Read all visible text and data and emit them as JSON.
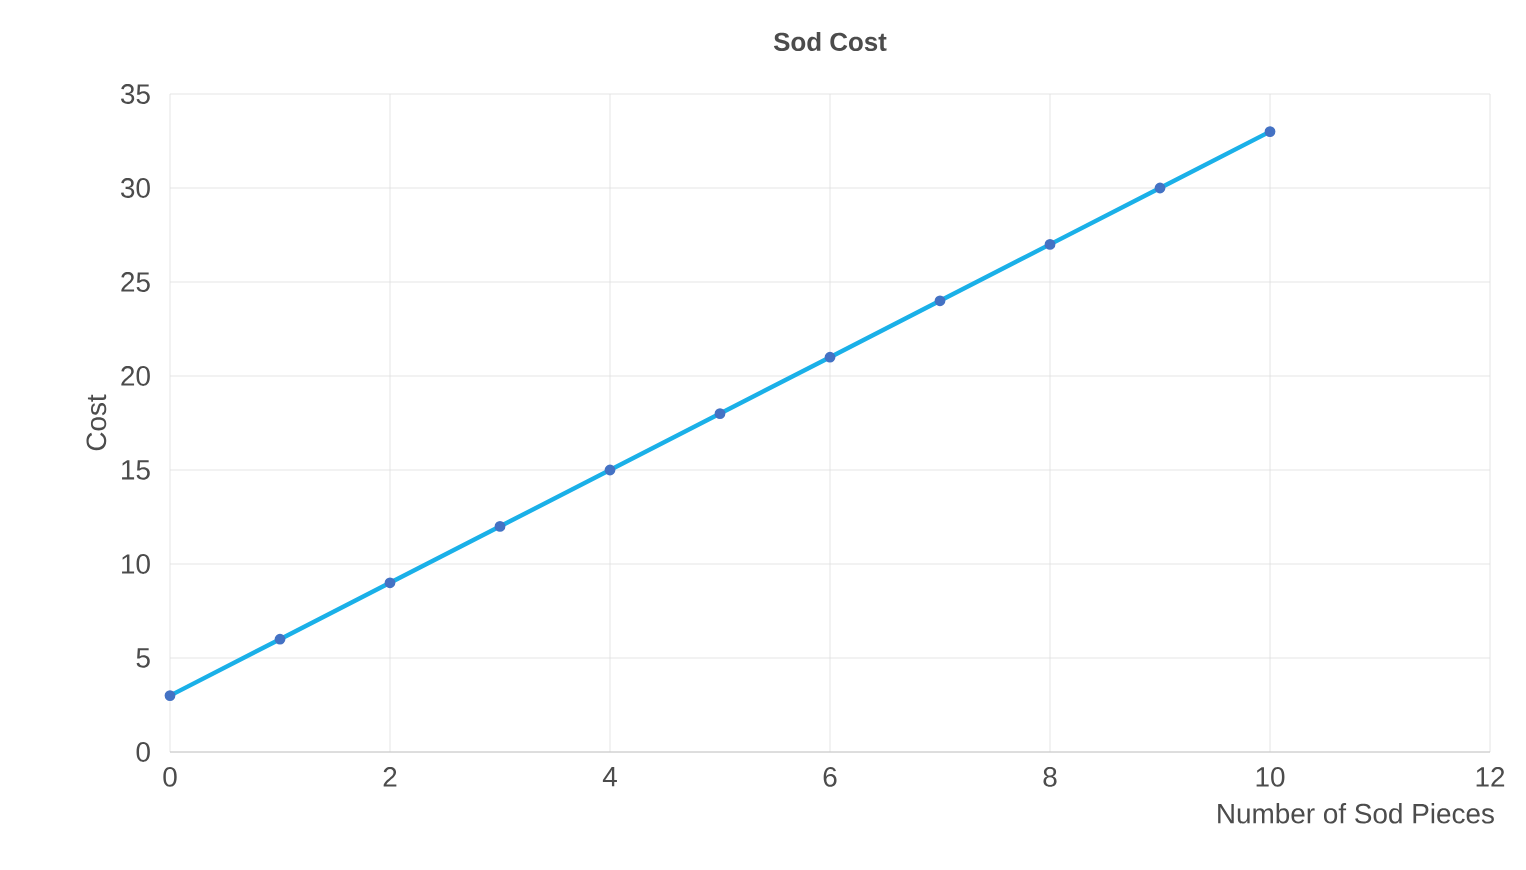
{
  "chart_data": {
    "type": "line",
    "title": "Sod Cost",
    "xlabel": "Number of Sod Pieces",
    "ylabel": "Cost",
    "x": [
      0,
      1,
      2,
      3,
      4,
      5,
      6,
      7,
      8,
      9,
      10
    ],
    "series": [
      {
        "color": "#1ab0e8",
        "values": [
          3,
          6,
          9,
          12,
          15,
          18,
          21,
          24,
          27,
          30,
          33
        ]
      }
    ],
    "xlim": [
      0,
      12
    ],
    "xticks": [
      0,
      2,
      4,
      6,
      8,
      10,
      12
    ],
    "ylim": [
      0,
      35
    ],
    "yticks": [
      0,
      5,
      10,
      15,
      20,
      25,
      30,
      35
    ],
    "grid": true,
    "marker": "circle",
    "line_style": "solid"
  }
}
